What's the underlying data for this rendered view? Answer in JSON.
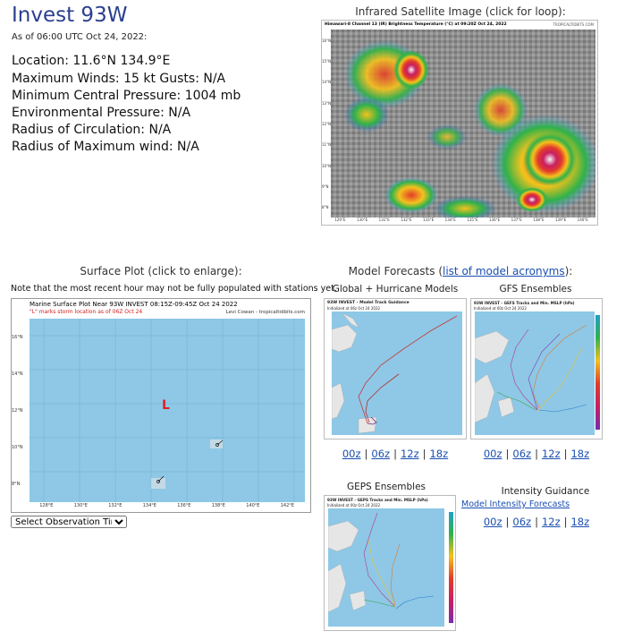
{
  "storm": {
    "name": "Invest 93W",
    "as_of": "As of 06:00 UTC Oct 24, 2022:",
    "location": "Location: 11.6°N 134.9°E",
    "max_winds": "Maximum Winds: 15 kt  Gusts: N/A",
    "min_pressure": "Minimum Central Pressure: 1004 mb",
    "env_pressure": "Environmental Pressure: N/A",
    "radius_circ": "Radius of Circulation: N/A",
    "radius_max_wind": "Radius of Maximum wind: N/A"
  },
  "satellite": {
    "label": "Infrared Satellite Image (click for loop):",
    "image_title": "Himawari-8 Channel 13 (IR) Brightness Temperature (°C) at 09:20Z Oct 24, 2022",
    "credit": "TROPICALTIDBITS.COM",
    "lat_ticks": [
      "16°N",
      "15°N",
      "14°N",
      "13°N",
      "12°N",
      "11°N",
      "10°N",
      "9°N",
      "8°N"
    ],
    "lon_ticks": [
      "129°E",
      "130°E",
      "131°E",
      "132°E",
      "133°E",
      "134°E",
      "135°E",
      "136°E",
      "137°E",
      "138°E",
      "139°E",
      "140°E"
    ]
  },
  "surface": {
    "label": "Surface Plot (click to enlarge):",
    "note": "Note that the most recent hour may not be fully populated with stations yet.",
    "plot_title": "Marine Surface Plot Near 93W INVEST 08:15Z-09:45Z Oct 24 2022",
    "plot_subtitle": "\"L\" marks storm location as of 06Z Oct 24",
    "credit": "Levi Cowan - tropicaltidbits.com",
    "storm_marker": "L",
    "lat_ticks": [
      "16°N",
      "14°N",
      "12°N",
      "10°N",
      "8°N"
    ],
    "lon_ticks": [
      "128°E",
      "130°E",
      "132°E",
      "134°E",
      "136°E",
      "138°E",
      "140°E",
      "142°E"
    ],
    "select_value": "Select Observation Time..."
  },
  "models": {
    "label_prefix": "Model Forecasts (",
    "label_link": "list of model acronyms",
    "label_suffix": "):",
    "global": {
      "title": "Global + Hurricane Models",
      "image_title": "93W INVEST - Model Track Guidance",
      "image_sub": "Initialized at 06z Oct 24 2022",
      "runs": [
        "00z",
        "06z",
        "12z",
        "18z"
      ]
    },
    "gfs": {
      "title": "GFS Ensembles",
      "image_title": "93W INVEST - GEFS Tracks and Min. MSLP (hPa)",
      "image_sub": "Initialized at 00z Oct 24 2022",
      "runs": [
        "00z",
        "06z",
        "12z",
        "18z"
      ]
    },
    "geps": {
      "title": "GEPS Ensembles",
      "image_title": "93W INVEST - GEPS Tracks and Min. MSLP (hPa)",
      "image_sub": "Initialized at 00z Oct 24 2022"
    },
    "intensity": {
      "title": "Intensity Guidance",
      "link": "Model Intensity Forecasts",
      "runs": [
        "00z",
        "06z",
        "12z",
        "18z"
      ]
    }
  },
  "colors": {
    "title": "#2a3f8f",
    "link": "#1a4fb0",
    "ocean": "#8ec8e6",
    "land": "#e6e6e6",
    "storm_marker": "#e02020"
  }
}
